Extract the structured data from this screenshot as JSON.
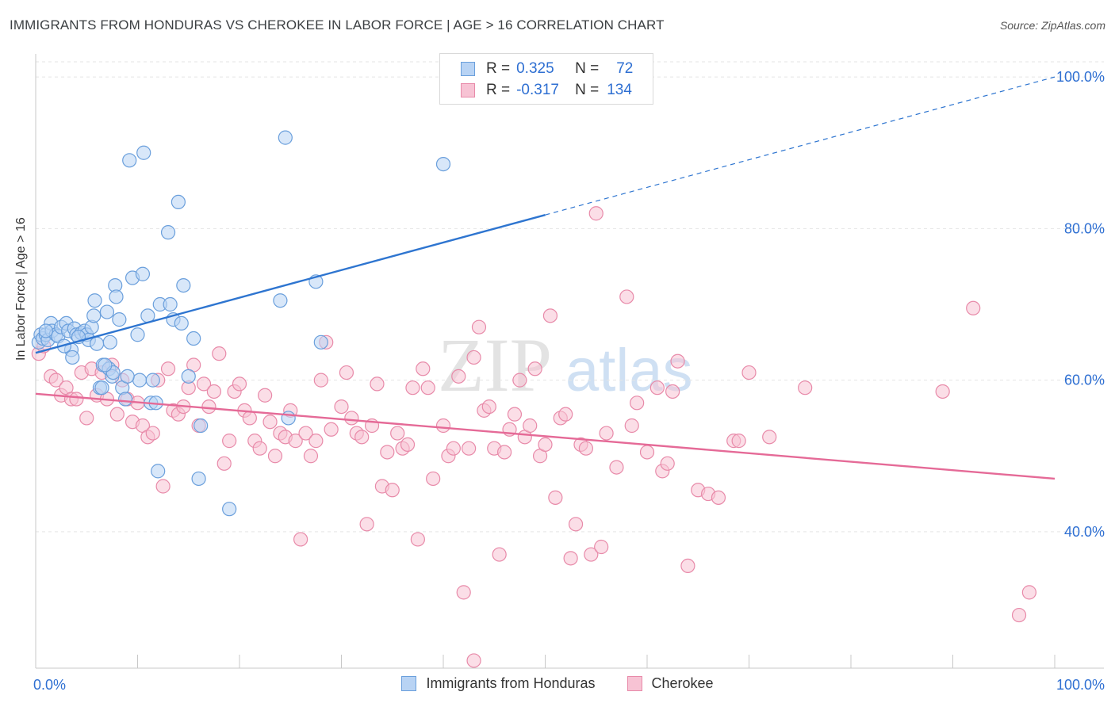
{
  "title": "IMMIGRANTS FROM HONDURAS VS CHEROKEE IN LABOR FORCE | AGE > 16 CORRELATION CHART",
  "source": "Source: ZipAtlas.com",
  "watermark": {
    "zip": "ZIP",
    "atlas": "atlas"
  },
  "colors": {
    "blue_fill": "#b8d3f4",
    "blue_stroke": "#6a9fdc",
    "blue_line": "#2e75d0",
    "pink_fill": "#f7c3d4",
    "pink_stroke": "#e88aa9",
    "pink_line": "#e56a97",
    "grid": "#e5e5e5",
    "tick_text": "#2e6fd2"
  },
  "legend": {
    "rows": [
      {
        "r_label": "R =",
        "r_value": "0.325",
        "n_label": "N =",
        "n_value": "72"
      },
      {
        "r_label": "R =",
        "r_value": "-0.317",
        "n_label": "N =",
        "n_value": "134"
      }
    ]
  },
  "bottom_legend": {
    "series1": "Immigrants from Honduras",
    "series2": "Cherokee"
  },
  "chart_data": {
    "type": "scatter",
    "ylabel": "In Labor Force | Age > 16",
    "xlim": [
      0,
      100
    ],
    "ylim": [
      22,
      102
    ],
    "x_tick_labels": {
      "left": "0.0%",
      "right": "100.0%"
    },
    "y_ticks": [
      {
        "value": 40,
        "label": "40.0%"
      },
      {
        "value": 60,
        "label": "60.0%"
      },
      {
        "value": 80,
        "label": "80.0%"
      },
      {
        "value": 100,
        "label": "100.0%"
      }
    ],
    "series": [
      {
        "name": "Immigrants from Honduras",
        "trend": {
          "x0": 0,
          "y0": 63.6,
          "x1": 50,
          "y1": 81.8,
          "dash_x1": 100,
          "dash_y1": 100
        },
        "points": [
          [
            0.3,
            65.0
          ],
          [
            0.5,
            66.0
          ],
          [
            0.7,
            65.5
          ],
          [
            1.0,
            66.0
          ],
          [
            1.2,
            65.3
          ],
          [
            1.5,
            67.5
          ],
          [
            1.6,
            66.5
          ],
          [
            2.0,
            66.0
          ],
          [
            2.2,
            65.8
          ],
          [
            2.5,
            67.0
          ],
          [
            3.0,
            67.5
          ],
          [
            3.2,
            66.5
          ],
          [
            3.5,
            64.0
          ],
          [
            3.6,
            63.0
          ],
          [
            3.8,
            66.8
          ],
          [
            4.0,
            66.0
          ],
          [
            4.5,
            66.2
          ],
          [
            4.8,
            66.5
          ],
          [
            5.0,
            66.0
          ],
          [
            5.2,
            65.3
          ],
          [
            5.5,
            67.0
          ],
          [
            5.7,
            68.5
          ],
          [
            5.8,
            70.5
          ],
          [
            6.0,
            64.8
          ],
          [
            6.3,
            59.0
          ],
          [
            6.5,
            59.0
          ],
          [
            6.6,
            62.0
          ],
          [
            7.0,
            69.0
          ],
          [
            7.2,
            61.5
          ],
          [
            7.3,
            65.0
          ],
          [
            7.5,
            60.5
          ],
          [
            7.6,
            61.0
          ],
          [
            7.8,
            72.5
          ],
          [
            7.9,
            71.0
          ],
          [
            8.2,
            68.0
          ],
          [
            8.5,
            59.0
          ],
          [
            8.8,
            57.5
          ],
          [
            9.2,
            89.0
          ],
          [
            9.5,
            73.5
          ],
          [
            10.0,
            66.0
          ],
          [
            10.2,
            60.0
          ],
          [
            10.5,
            74.0
          ],
          [
            10.6,
            90.0
          ],
          [
            11.0,
            68.5
          ],
          [
            11.3,
            57.0
          ],
          [
            11.5,
            60.0
          ],
          [
            11.8,
            57.0
          ],
          [
            12.0,
            48.0
          ],
          [
            12.2,
            70.0
          ],
          [
            13.0,
            79.5
          ],
          [
            13.2,
            70.0
          ],
          [
            13.5,
            68.0
          ],
          [
            14.0,
            83.5
          ],
          [
            14.3,
            67.5
          ],
          [
            14.5,
            72.5
          ],
          [
            15.0,
            60.5
          ],
          [
            15.5,
            65.5
          ],
          [
            16.0,
            47.0
          ],
          [
            16.2,
            54.0
          ],
          [
            19.0,
            43.0
          ],
          [
            24.0,
            70.5
          ],
          [
            24.8,
            55.0
          ],
          [
            24.5,
            92.0
          ],
          [
            27.5,
            73.0
          ],
          [
            28.0,
            65.0
          ],
          [
            40.0,
            88.5
          ],
          [
            41.0,
            100.0
          ],
          [
            1.0,
            66.5
          ],
          [
            2.8,
            64.5
          ],
          [
            4.2,
            65.7
          ],
          [
            6.8,
            62.0
          ],
          [
            9.0,
            60.5
          ]
        ]
      },
      {
        "name": "Cherokee",
        "trend": {
          "x0": 0,
          "y0": 58.2,
          "x1": 100,
          "y1": 47.0
        },
        "points": [
          [
            0.3,
            63.5
          ],
          [
            0.8,
            64.5
          ],
          [
            1.5,
            60.5
          ],
          [
            2.0,
            60.0
          ],
          [
            2.5,
            58.0
          ],
          [
            3.0,
            59.0
          ],
          [
            3.5,
            57.5
          ],
          [
            4.0,
            57.5
          ],
          [
            4.5,
            61.0
          ],
          [
            5.0,
            55.0
          ],
          [
            5.5,
            61.5
          ],
          [
            6.0,
            58.0
          ],
          [
            6.5,
            61.0
          ],
          [
            7.0,
            57.5
          ],
          [
            7.5,
            62.0
          ],
          [
            8.0,
            55.5
          ],
          [
            8.5,
            60.0
          ],
          [
            9.0,
            57.5
          ],
          [
            9.5,
            54.5
          ],
          [
            10.0,
            57.0
          ],
          [
            10.5,
            54.0
          ],
          [
            11.0,
            52.5
          ],
          [
            11.5,
            53.0
          ],
          [
            12.0,
            60.0
          ],
          [
            12.5,
            46.0
          ],
          [
            13.0,
            61.5
          ],
          [
            13.5,
            56.0
          ],
          [
            14.0,
            55.5
          ],
          [
            14.5,
            56.5
          ],
          [
            15.0,
            59.0
          ],
          [
            15.5,
            62.0
          ],
          [
            16.0,
            54.0
          ],
          [
            16.5,
            59.5
          ],
          [
            17.0,
            56.5
          ],
          [
            17.5,
            58.5
          ],
          [
            18.0,
            63.5
          ],
          [
            18.5,
            49.0
          ],
          [
            19.0,
            52.0
          ],
          [
            19.5,
            58.5
          ],
          [
            20.0,
            59.5
          ],
          [
            20.5,
            56.0
          ],
          [
            21.0,
            55.0
          ],
          [
            21.5,
            52.0
          ],
          [
            22.0,
            51.0
          ],
          [
            22.5,
            58.0
          ],
          [
            23.0,
            54.5
          ],
          [
            23.5,
            50.0
          ],
          [
            24.0,
            53.0
          ],
          [
            24.5,
            52.5
          ],
          [
            25.0,
            56.0
          ],
          [
            25.5,
            52.0
          ],
          [
            26.0,
            39.0
          ],
          [
            26.5,
            53.0
          ],
          [
            27.0,
            50.0
          ],
          [
            27.5,
            52.0
          ],
          [
            28.0,
            60.0
          ],
          [
            28.5,
            65.0
          ],
          [
            29.0,
            53.5
          ],
          [
            30.0,
            56.5
          ],
          [
            30.5,
            61.0
          ],
          [
            31.0,
            55.0
          ],
          [
            31.5,
            53.0
          ],
          [
            32.0,
            52.5
          ],
          [
            32.5,
            41.0
          ],
          [
            33.0,
            54.0
          ],
          [
            33.5,
            59.5
          ],
          [
            34.0,
            46.0
          ],
          [
            34.5,
            50.5
          ],
          [
            35.0,
            45.5
          ],
          [
            35.5,
            53.0
          ],
          [
            36.0,
            51.0
          ],
          [
            36.5,
            51.5
          ],
          [
            37.0,
            59.0
          ],
          [
            37.5,
            39.0
          ],
          [
            38.0,
            61.5
          ],
          [
            38.5,
            59.0
          ],
          [
            39.0,
            47.0
          ],
          [
            40.0,
            54.0
          ],
          [
            40.5,
            50.0
          ],
          [
            41.0,
            51.0
          ],
          [
            41.5,
            60.5
          ],
          [
            42.0,
            32.0
          ],
          [
            42.5,
            51.0
          ],
          [
            43.0,
            63.0
          ],
          [
            43.5,
            67.0
          ],
          [
            44.0,
            56.0
          ],
          [
            44.5,
            56.5
          ],
          [
            45.0,
            51.0
          ],
          [
            45.5,
            37.0
          ],
          [
            46.0,
            50.5
          ],
          [
            46.5,
            53.5
          ],
          [
            47.0,
            55.5
          ],
          [
            47.5,
            60.0
          ],
          [
            48.0,
            52.5
          ],
          [
            48.5,
            54.0
          ],
          [
            49.0,
            61.5
          ],
          [
            49.5,
            50.0
          ],
          [
            50.0,
            51.5
          ],
          [
            50.5,
            68.5
          ],
          [
            51.0,
            44.5
          ],
          [
            51.5,
            55.0
          ],
          [
            52.0,
            55.5
          ],
          [
            52.5,
            36.5
          ],
          [
            53.0,
            41.0
          ],
          [
            53.5,
            51.5
          ],
          [
            54.0,
            51.0
          ],
          [
            54.5,
            37.0
          ],
          [
            55.0,
            82.0
          ],
          [
            55.5,
            38.0
          ],
          [
            56.0,
            53.0
          ],
          [
            57.0,
            48.5
          ],
          [
            58.0,
            71.0
          ],
          [
            58.5,
            54.0
          ],
          [
            59.0,
            57.0
          ],
          [
            60.0,
            50.5
          ],
          [
            61.0,
            59.0
          ],
          [
            61.5,
            48.0
          ],
          [
            62.0,
            49.0
          ],
          [
            62.5,
            58.5
          ],
          [
            63.0,
            62.5
          ],
          [
            64.0,
            35.5
          ],
          [
            65.0,
            45.5
          ],
          [
            66.0,
            45.0
          ],
          [
            67.0,
            44.5
          ],
          [
            68.5,
            52.0
          ],
          [
            69.0,
            52.0
          ],
          [
            70.0,
            61.0
          ],
          [
            72.0,
            52.5
          ],
          [
            75.5,
            59.0
          ],
          [
            89.0,
            58.5
          ],
          [
            92.0,
            69.5
          ],
          [
            96.5,
            29.0
          ],
          [
            97.5,
            32.0
          ],
          [
            43.0,
            23.0
          ]
        ]
      }
    ]
  }
}
